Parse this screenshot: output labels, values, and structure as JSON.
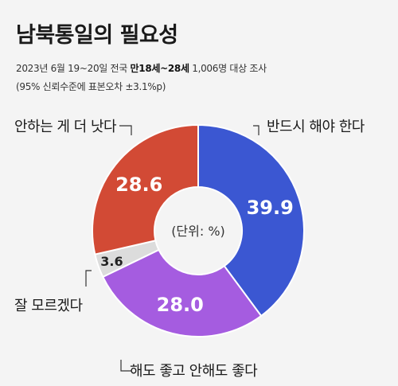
{
  "header": {
    "title": "남북통일의 필요성",
    "subtitle_pre": "2023년 6월 19~20일 전국 ",
    "subtitle_bold": "만18세~28세",
    "subtitle_post": " 1,006명 대상 조사",
    "note": "(95% 신뢰수준에 표본오차 ±3.1%p)"
  },
  "chart_data": {
    "type": "pie",
    "donut": true,
    "center_label": "(단위: %)",
    "slices": [
      {
        "label": "반드시 해야 한다",
        "value": 39.9,
        "value_label": "39.9",
        "color": "#3b57d2"
      },
      {
        "label": "해도 좋고 안해도 좋다",
        "value": 28.0,
        "value_label": "28.0",
        "color": "#a55ce0"
      },
      {
        "label": "잘 모르겠다",
        "value": 3.6,
        "value_label": "3.6",
        "color": "#dcdcdc"
      },
      {
        "label": "안하는 게 더 낫다",
        "value": 28.6,
        "value_label": "28.6",
        "color": "#d24a35"
      }
    ]
  }
}
